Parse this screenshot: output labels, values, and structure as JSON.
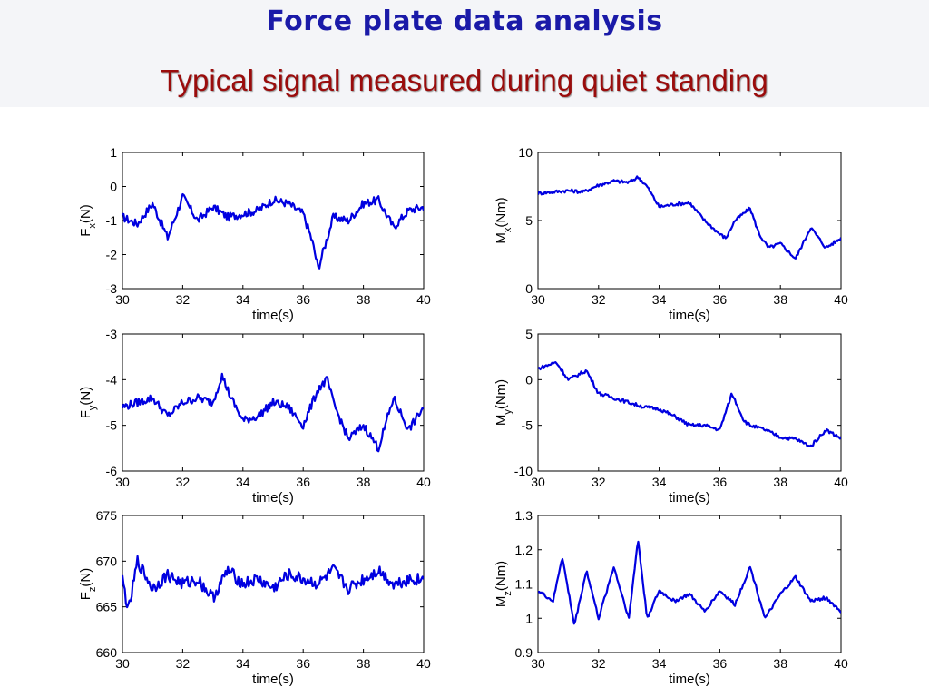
{
  "slide": {
    "title": "Force plate data analysis",
    "subtitle": "Typical signal measured during quiet standing"
  },
  "chart_data": [
    {
      "type": "line",
      "id": "fx",
      "xlabel": "time(s)",
      "ylabel": "F",
      "ylabel_sub": "x",
      "ylabel_unit": "(N)",
      "xlim": [
        30,
        40
      ],
      "ylim": [
        -3,
        1
      ],
      "xticks": [
        30,
        32,
        34,
        36,
        38,
        40
      ],
      "yticks": [
        -3,
        -2,
        -1,
        0,
        1
      ],
      "color": "#0000e0",
      "series": [
        {
          "x": [
            30,
            30.5,
            31,
            31.5,
            32,
            32.5,
            33,
            33.5,
            34,
            34.5,
            35,
            35.5,
            36,
            36.3,
            36.5,
            37,
            37.5,
            38,
            38.5,
            39,
            39.5,
            40
          ],
          "values": [
            -0.9,
            -1.1,
            -0.5,
            -1.5,
            -0.3,
            -1.0,
            -0.6,
            -0.9,
            -0.8,
            -0.7,
            -0.4,
            -0.5,
            -0.8,
            -1.6,
            -2.4,
            -0.9,
            -1.0,
            -0.5,
            -0.4,
            -1.2,
            -0.7,
            -0.6
          ]
        }
      ]
    },
    {
      "type": "line",
      "id": "mx",
      "xlabel": "time(s)",
      "ylabel": "M",
      "ylabel_sub": "x",
      "ylabel_unit": "(Nm)",
      "xlim": [
        30,
        40
      ],
      "ylim": [
        0,
        10
      ],
      "xticks": [
        30,
        32,
        34,
        36,
        38,
        40
      ],
      "yticks": [
        0,
        5,
        10
      ],
      "color": "#0000e0",
      "series": [
        {
          "x": [
            30,
            30.5,
            31,
            31.5,
            32,
            32.5,
            33,
            33.3,
            33.6,
            34,
            34.5,
            35,
            35.5,
            36,
            36.2,
            36.5,
            37,
            37.3,
            37.6,
            38,
            38.5,
            39,
            39.5,
            40
          ],
          "values": [
            7.0,
            7.1,
            7.2,
            7.1,
            7.6,
            7.9,
            7.8,
            8.2,
            7.5,
            6.0,
            6.2,
            6.3,
            5.0,
            4.0,
            3.7,
            5.0,
            5.9,
            4.0,
            3.0,
            3.3,
            2.2,
            4.5,
            3.0,
            3.7
          ]
        }
      ]
    },
    {
      "type": "line",
      "id": "fy",
      "xlabel": "time(s)",
      "ylabel": "F",
      "ylabel_sub": "y",
      "ylabel_unit": "(N)",
      "xlim": [
        30,
        40
      ],
      "ylim": [
        -6,
        -3
      ],
      "xticks": [
        30,
        32,
        34,
        36,
        38,
        40
      ],
      "yticks": [
        -6,
        -5,
        -4,
        -3
      ],
      "color": "#0000e0",
      "series": [
        {
          "x": [
            30,
            30.5,
            31,
            31.5,
            32,
            32.5,
            33,
            33.3,
            33.6,
            34,
            34.5,
            35,
            35.5,
            36,
            36.5,
            36.8,
            37,
            37.5,
            38,
            38.5,
            39,
            39.5,
            40
          ],
          "values": [
            -4.6,
            -4.5,
            -4.4,
            -4.8,
            -4.5,
            -4.4,
            -4.5,
            -3.9,
            -4.4,
            -4.9,
            -4.8,
            -4.5,
            -4.6,
            -5.0,
            -4.2,
            -4.0,
            -4.5,
            -5.3,
            -5.0,
            -5.5,
            -4.4,
            -5.1,
            -4.6
          ]
        }
      ]
    },
    {
      "type": "line",
      "id": "my",
      "xlabel": "time(s)",
      "ylabel": "M",
      "ylabel_sub": "y",
      "ylabel_unit": "(Nm)",
      "xlim": [
        30,
        40
      ],
      "ylim": [
        -10,
        5
      ],
      "xticks": [
        30,
        32,
        34,
        36,
        38,
        40
      ],
      "yticks": [
        -10,
        -5,
        0,
        5
      ],
      "color": "#0000e0",
      "series": [
        {
          "x": [
            30,
            30.6,
            31,
            31.6,
            32,
            32.5,
            33,
            33.5,
            34,
            34.5,
            35,
            35.5,
            36,
            36.4,
            36.8,
            37,
            37.5,
            38,
            38.5,
            39,
            39.5,
            40
          ],
          "values": [
            1.2,
            1.9,
            0.0,
            1.0,
            -1.5,
            -2.0,
            -2.5,
            -3.0,
            -3.2,
            -4.0,
            -5.0,
            -5.0,
            -5.5,
            -1.5,
            -4.5,
            -5.0,
            -5.5,
            -6.3,
            -6.5,
            -7.3,
            -5.5,
            -6.4
          ]
        }
      ]
    },
    {
      "type": "line",
      "id": "fz",
      "xlabel": "time(s)",
      "ylabel": "F",
      "ylabel_sub": "z",
      "ylabel_unit": "(N)",
      "xlim": [
        30,
        40
      ],
      "ylim": [
        660,
        675
      ],
      "xticks": [
        30,
        32,
        34,
        36,
        38,
        40
      ],
      "yticks": [
        660,
        665,
        670,
        675
      ],
      "color": "#0000e0",
      "series": [
        {
          "x": [
            30,
            30.2,
            30.5,
            31,
            31.5,
            32,
            32.5,
            33,
            33.5,
            34,
            34.5,
            35,
            35.5,
            36,
            36.5,
            37,
            37.5,
            38,
            38.5,
            39,
            39.5,
            40
          ],
          "values": [
            668,
            664.5,
            670,
            667,
            668.5,
            667.5,
            668,
            666,
            669,
            667.5,
            668,
            667,
            668.5,
            668,
            667.5,
            669,
            667,
            668,
            669,
            667.5,
            668,
            668
          ]
        }
      ]
    },
    {
      "type": "line",
      "id": "mz",
      "xlabel": "time(s)",
      "ylabel": "M",
      "ylabel_sub": "z",
      "ylabel_unit": "(Nm)",
      "xlim": [
        30,
        40
      ],
      "ylim": [
        0.9,
        1.3
      ],
      "xticks": [
        30,
        32,
        34,
        36,
        38,
        40
      ],
      "yticks": [
        0.9,
        1,
        1.1,
        1.2,
        1.3
      ],
      "color": "#0000e0",
      "series": [
        {
          "x": [
            30,
            30.5,
            30.8,
            31.2,
            31.6,
            32,
            32.5,
            33,
            33.3,
            33.6,
            34,
            34.5,
            35,
            35.5,
            36,
            36.5,
            37,
            37.5,
            38,
            38.5,
            39,
            39.5,
            40
          ],
          "values": [
            1.08,
            1.05,
            1.18,
            0.98,
            1.14,
            1.0,
            1.15,
            1.0,
            1.23,
            1.0,
            1.08,
            1.05,
            1.07,
            1.02,
            1.08,
            1.04,
            1.15,
            1.0,
            1.07,
            1.12,
            1.05,
            1.06,
            1.02
          ]
        }
      ]
    }
  ]
}
